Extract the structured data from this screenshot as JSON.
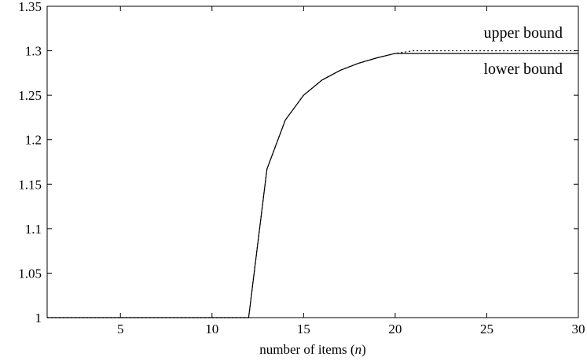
{
  "chart_data": {
    "type": "line",
    "title": "",
    "xlabel": "number of items (n)",
    "xlabel_parts": {
      "prefix": "number of items (",
      "var": "n",
      "suffix": ")"
    },
    "ylabel": "",
    "xlim": [
      1,
      30
    ],
    "ylim": [
      1,
      1.35
    ],
    "x_ticks": [
      5,
      10,
      15,
      20,
      25,
      30
    ],
    "y_ticks": [
      1,
      1.05,
      1.1,
      1.15,
      1.2,
      1.25,
      1.3,
      1.35
    ],
    "y_tick_labels": [
      "1",
      "1.05",
      "1.1",
      "1.15",
      "1.2",
      "1.25",
      "1.3",
      "1.35"
    ],
    "grid": false,
    "series": [
      {
        "name": "upper bound",
        "style": "dotted",
        "color": "#000000",
        "x": [
          1,
          12,
          13,
          14,
          15,
          16,
          17,
          18,
          19,
          20,
          21,
          22,
          23,
          24,
          25,
          26,
          27,
          28,
          29,
          30
        ],
        "y": [
          1.0,
          1.0,
          1.167,
          1.222,
          1.25,
          1.267,
          1.278,
          1.286,
          1.292,
          1.297,
          1.3,
          1.3,
          1.3,
          1.3,
          1.3,
          1.3,
          1.3,
          1.3,
          1.3,
          1.3
        ]
      },
      {
        "name": "lower bound",
        "style": "solid",
        "color": "#000000",
        "x": [
          1,
          12,
          13,
          14,
          15,
          16,
          17,
          18,
          19,
          20,
          21,
          22,
          23,
          24,
          25,
          26,
          27,
          28,
          29,
          30
        ],
        "y": [
          1.0,
          1.0,
          1.167,
          1.222,
          1.25,
          1.267,
          1.278,
          1.286,
          1.292,
          1.297,
          1.297,
          1.297,
          1.297,
          1.297,
          1.297,
          1.297,
          1.297,
          1.297,
          1.297,
          1.297
        ]
      }
    ]
  }
}
